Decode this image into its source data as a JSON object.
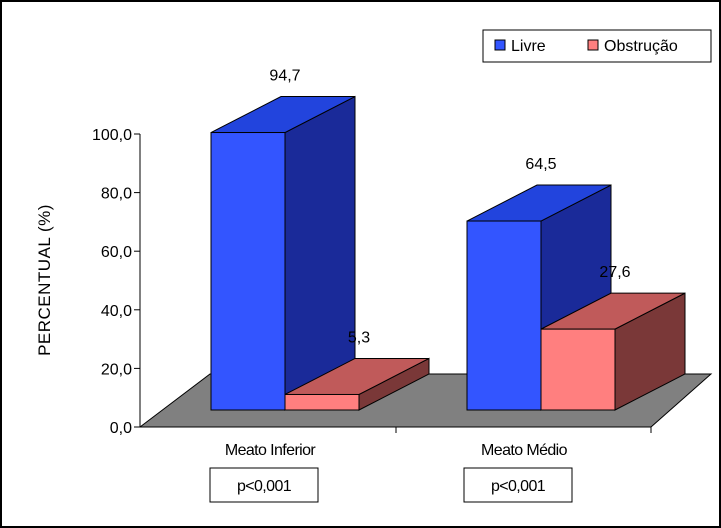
{
  "chart_data": {
    "type": "bar",
    "categories": [
      "Meato Inferior",
      "Meato Médio"
    ],
    "series": [
      {
        "name": "Livre",
        "values": [
          94.7,
          64.5
        ],
        "labels": [
          "94,7",
          "64,5"
        ],
        "color": "#3355ff",
        "top_color": "#2244dd",
        "side_color": "#1a2a99"
      },
      {
        "name": "Obstrução",
        "values": [
          5.3,
          27.6
        ],
        "labels": [
          "5,3",
          "27,6"
        ],
        "color": "#ff7f7f",
        "top_color": "#c05a5a",
        "side_color": "#7a3838"
      }
    ],
    "ylabel": "PERCENTUAL (%)",
    "ylim": [
      0,
      100
    ],
    "yticks": [
      "0,0",
      "20,0",
      "40,0",
      "60,0",
      "80,0",
      "100,0"
    ],
    "legend_position": "top-right",
    "floor_color": "#808080",
    "annotations": [
      "p<0,001",
      "p<0,001"
    ]
  }
}
